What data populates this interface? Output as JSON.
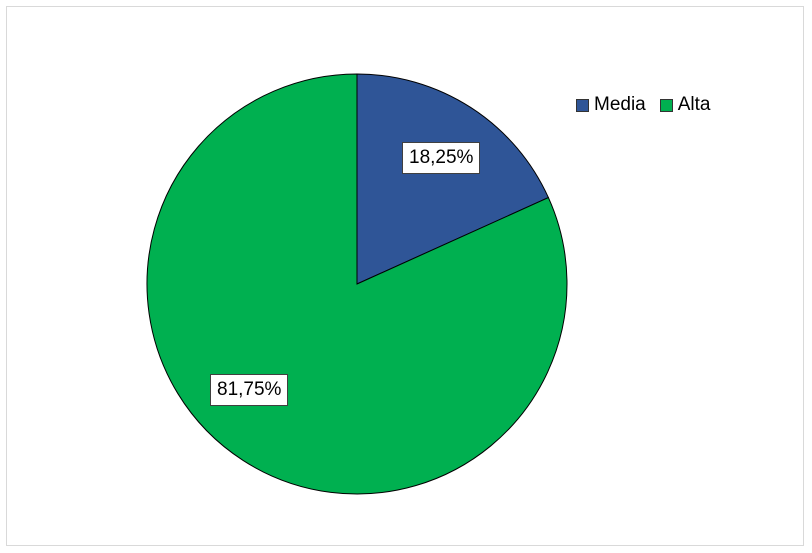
{
  "chart_data": {
    "type": "pie",
    "title": "",
    "categories": [
      "Media",
      "Alta"
    ],
    "values": [
      18.25,
      81.75
    ],
    "data_labels": [
      "18,25%",
      "81,75%"
    ],
    "colors": [
      "#2f5597",
      "#00b050"
    ],
    "legend_position": "top-right",
    "start_angle_deg": 0,
    "direction": "clockwise"
  },
  "legend": {
    "items": [
      {
        "label": "Media",
        "color": "#2f5597"
      },
      {
        "label": "Alta",
        "color": "#00b050"
      }
    ]
  }
}
